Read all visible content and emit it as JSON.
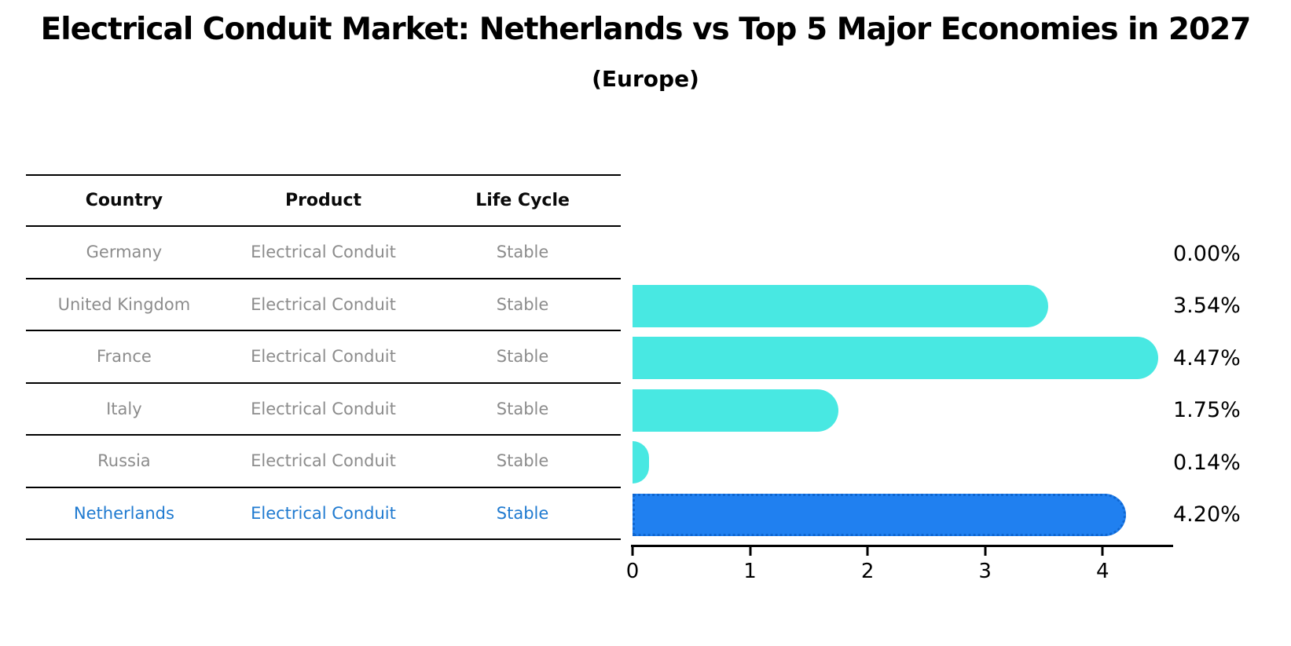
{
  "title": "Electrical Conduit Market: Netherlands vs Top 5 Major Economies in 2027",
  "subtitle": "(Europe)",
  "table": {
    "headers": [
      "Country",
      "Product",
      "Life Cycle"
    ],
    "rows": [
      {
        "country": "Germany",
        "product": "Electrical Conduit",
        "life_cycle": "Stable",
        "highlight": false
      },
      {
        "country": "United Kingdom",
        "product": "Electrical Conduit",
        "life_cycle": "Stable",
        "highlight": false
      },
      {
        "country": "France",
        "product": "Electrical Conduit",
        "life_cycle": "Stable",
        "highlight": false
      },
      {
        "country": "Italy",
        "product": "Electrical Conduit",
        "life_cycle": "Stable",
        "highlight": false
      },
      {
        "country": "Russia",
        "product": "Electrical Conduit",
        "life_cycle": "Stable",
        "highlight": false
      },
      {
        "country": "Netherlands",
        "product": "Electrical Conduit",
        "life_cycle": "Stable",
        "highlight": true
      }
    ]
  },
  "chart_data": {
    "type": "bar",
    "orientation": "horizontal",
    "categories": [
      "Germany",
      "United Kingdom",
      "France",
      "Italy",
      "Russia",
      "Netherlands"
    ],
    "values": [
      0.0,
      3.54,
      4.47,
      1.75,
      0.14,
      4.2
    ],
    "value_labels": [
      "0.00%",
      "3.54%",
      "4.47%",
      "1.75%",
      "0.14%",
      "4.20%"
    ],
    "xticks": [
      0,
      1,
      2,
      3,
      4
    ],
    "xlim": [
      0,
      4.6
    ],
    "grid": false,
    "legend": false,
    "bar_color": "#48e8e2",
    "highlight_color": "#2080f0",
    "highlight_index": 5
  },
  "colors": {
    "background": "#ffffff",
    "table_text_gray": "#8c8c8c",
    "highlight_text_blue": "#1f7ad0",
    "axis_black": "#000000"
  }
}
